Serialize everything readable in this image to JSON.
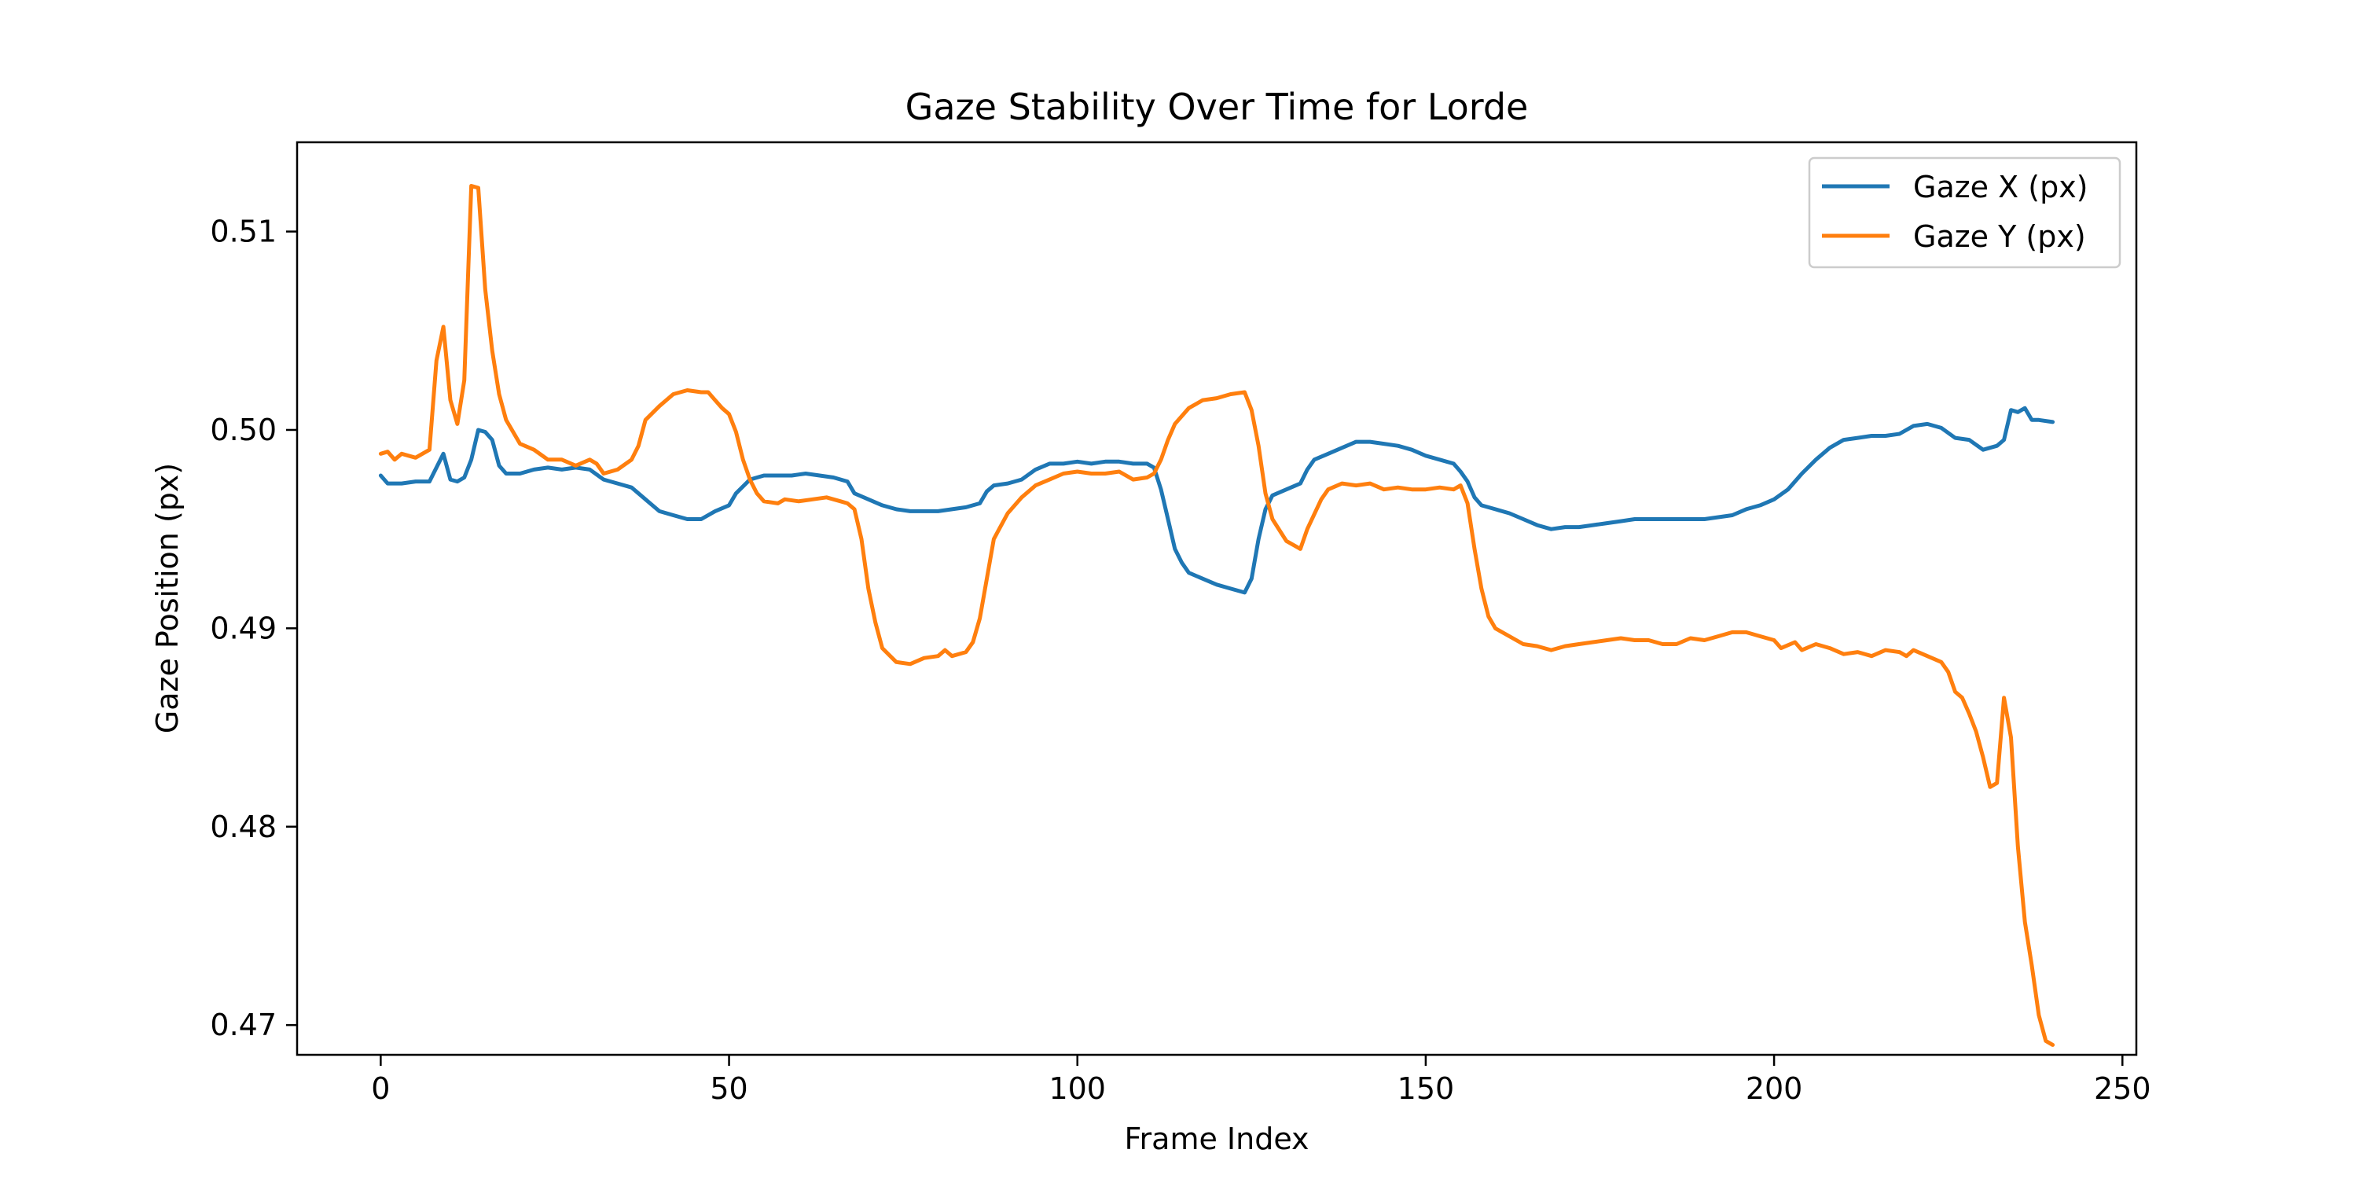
{
  "chart_data": {
    "type": "line",
    "title": "Gaze Stability Over Time for Lorde",
    "xlabel": "Frame Index",
    "ylabel": "Gaze Position (px)",
    "xlim": [
      -12,
      252
    ],
    "ylim": [
      0.4685,
      0.5145
    ],
    "xticks": [
      0,
      50,
      100,
      150,
      200,
      250
    ],
    "yticks": [
      0.47,
      0.48,
      0.49,
      0.5,
      0.51
    ],
    "xtick_labels": [
      "0",
      "50",
      "100",
      "150",
      "200",
      "250"
    ],
    "ytick_labels": [
      "0.47",
      "0.48",
      "0.49",
      "0.50",
      "0.51"
    ],
    "grid": false,
    "legend_position": "top-right",
    "series": [
      {
        "name": "Gaze X (px)",
        "color": "#1f77b4",
        "points": [
          [
            0,
            0.4977
          ],
          [
            1,
            0.4973
          ],
          [
            3,
            0.4973
          ],
          [
            5,
            0.4974
          ],
          [
            7,
            0.4974
          ],
          [
            9,
            0.4988
          ],
          [
            10,
            0.4975
          ],
          [
            11,
            0.4974
          ],
          [
            12,
            0.4976
          ],
          [
            13,
            0.4985
          ],
          [
            14,
            0.5
          ],
          [
            15,
            0.4999
          ],
          [
            16,
            0.4995
          ],
          [
            17,
            0.4982
          ],
          [
            18,
            0.4978
          ],
          [
            20,
            0.4978
          ],
          [
            22,
            0.498
          ],
          [
            24,
            0.4981
          ],
          [
            26,
            0.498
          ],
          [
            28,
            0.4981
          ],
          [
            30,
            0.498
          ],
          [
            32,
            0.4975
          ],
          [
            34,
            0.4973
          ],
          [
            36,
            0.4971
          ],
          [
            38,
            0.4965
          ],
          [
            40,
            0.4959
          ],
          [
            42,
            0.4957
          ],
          [
            44,
            0.4955
          ],
          [
            46,
            0.4955
          ],
          [
            48,
            0.4959
          ],
          [
            50,
            0.4962
          ],
          [
            51,
            0.4968
          ],
          [
            53,
            0.4975
          ],
          [
            55,
            0.4977
          ],
          [
            57,
            0.4977
          ],
          [
            59,
            0.4977
          ],
          [
            61,
            0.4978
          ],
          [
            63,
            0.4977
          ],
          [
            65,
            0.4976
          ],
          [
            67,
            0.4974
          ],
          [
            68,
            0.4968
          ],
          [
            70,
            0.4965
          ],
          [
            72,
            0.4962
          ],
          [
            74,
            0.496
          ],
          [
            76,
            0.4959
          ],
          [
            78,
            0.4959
          ],
          [
            80,
            0.4959
          ],
          [
            82,
            0.496
          ],
          [
            84,
            0.4961
          ],
          [
            86,
            0.4963
          ],
          [
            87,
            0.4969
          ],
          [
            88,
            0.4972
          ],
          [
            90,
            0.4973
          ],
          [
            92,
            0.4975
          ],
          [
            94,
            0.498
          ],
          [
            96,
            0.4983
          ],
          [
            98,
            0.4983
          ],
          [
            100,
            0.4984
          ],
          [
            102,
            0.4983
          ],
          [
            104,
            0.4984
          ],
          [
            106,
            0.4984
          ],
          [
            108,
            0.4983
          ],
          [
            110,
            0.4983
          ],
          [
            111,
            0.4981
          ],
          [
            112,
            0.497
          ],
          [
            113,
            0.4955
          ],
          [
            114,
            0.494
          ],
          [
            115,
            0.4933
          ],
          [
            116,
            0.4928
          ],
          [
            118,
            0.4925
          ],
          [
            120,
            0.4922
          ],
          [
            122,
            0.492
          ],
          [
            124,
            0.4918
          ],
          [
            125,
            0.4925
          ],
          [
            126,
            0.4945
          ],
          [
            127,
            0.496
          ],
          [
            128,
            0.4967
          ],
          [
            130,
            0.497
          ],
          [
            132,
            0.4973
          ],
          [
            133,
            0.498
          ],
          [
            134,
            0.4985
          ],
          [
            136,
            0.4988
          ],
          [
            138,
            0.4991
          ],
          [
            140,
            0.4994
          ],
          [
            142,
            0.4994
          ],
          [
            144,
            0.4993
          ],
          [
            146,
            0.4992
          ],
          [
            148,
            0.499
          ],
          [
            150,
            0.4987
          ],
          [
            152,
            0.4985
          ],
          [
            154,
            0.4983
          ],
          [
            155,
            0.4979
          ],
          [
            156,
            0.4974
          ],
          [
            157,
            0.4966
          ],
          [
            158,
            0.4962
          ],
          [
            160,
            0.496
          ],
          [
            162,
            0.4958
          ],
          [
            164,
            0.4955
          ],
          [
            166,
            0.4952
          ],
          [
            168,
            0.495
          ],
          [
            170,
            0.4951
          ],
          [
            172,
            0.4951
          ],
          [
            174,
            0.4952
          ],
          [
            176,
            0.4953
          ],
          [
            178,
            0.4954
          ],
          [
            180,
            0.4955
          ],
          [
            182,
            0.4955
          ],
          [
            184,
            0.4955
          ],
          [
            186,
            0.4955
          ],
          [
            188,
            0.4955
          ],
          [
            190,
            0.4955
          ],
          [
            192,
            0.4956
          ],
          [
            194,
            0.4957
          ],
          [
            196,
            0.496
          ],
          [
            198,
            0.4962
          ],
          [
            200,
            0.4965
          ],
          [
            202,
            0.497
          ],
          [
            204,
            0.4978
          ],
          [
            206,
            0.4985
          ],
          [
            208,
            0.4991
          ],
          [
            210,
            0.4995
          ],
          [
            212,
            0.4996
          ],
          [
            214,
            0.4997
          ],
          [
            216,
            0.4997
          ],
          [
            218,
            0.4998
          ],
          [
            220,
            0.5002
          ],
          [
            222,
            0.5003
          ],
          [
            224,
            0.5001
          ],
          [
            226,
            0.4996
          ],
          [
            228,
            0.4995
          ],
          [
            230,
            0.499
          ],
          [
            232,
            0.4992
          ],
          [
            233,
            0.4995
          ],
          [
            234,
            0.501
          ],
          [
            235,
            0.5009
          ],
          [
            236,
            0.5011
          ],
          [
            237,
            0.5005
          ],
          [
            238,
            0.5005
          ],
          [
            240,
            0.5004
          ]
        ]
      },
      {
        "name": "Gaze Y (px)",
        "color": "#ff7f0e",
        "points": [
          [
            0,
            0.4988
          ],
          [
            1,
            0.4989
          ],
          [
            2,
            0.4985
          ],
          [
            3,
            0.4988
          ],
          [
            5,
            0.4986
          ],
          [
            7,
            0.499
          ],
          [
            8,
            0.5035
          ],
          [
            9,
            0.5052
          ],
          [
            10,
            0.5015
          ],
          [
            11,
            0.5003
          ],
          [
            12,
            0.5025
          ],
          [
            13,
            0.5123
          ],
          [
            14,
            0.5122
          ],
          [
            15,
            0.5071
          ],
          [
            16,
            0.504
          ],
          [
            17,
            0.5018
          ],
          [
            18,
            0.5005
          ],
          [
            20,
            0.4993
          ],
          [
            22,
            0.499
          ],
          [
            24,
            0.4985
          ],
          [
            26,
            0.4985
          ],
          [
            28,
            0.4982
          ],
          [
            30,
            0.4985
          ],
          [
            31,
            0.4983
          ],
          [
            32,
            0.4978
          ],
          [
            34,
            0.498
          ],
          [
            36,
            0.4985
          ],
          [
            37,
            0.4992
          ],
          [
            38,
            0.5005
          ],
          [
            40,
            0.5012
          ],
          [
            42,
            0.5018
          ],
          [
            44,
            0.502
          ],
          [
            46,
            0.5019
          ],
          [
            47,
            0.5019
          ],
          [
            48,
            0.5015
          ],
          [
            49,
            0.5011
          ],
          [
            50,
            0.5008
          ],
          [
            51,
            0.4999
          ],
          [
            52,
            0.4985
          ],
          [
            53,
            0.4975
          ],
          [
            54,
            0.4968
          ],
          [
            55,
            0.4964
          ],
          [
            57,
            0.4963
          ],
          [
            58,
            0.4965
          ],
          [
            60,
            0.4964
          ],
          [
            62,
            0.4965
          ],
          [
            64,
            0.4966
          ],
          [
            66,
            0.4964
          ],
          [
            67,
            0.4963
          ],
          [
            68,
            0.496
          ],
          [
            69,
            0.4945
          ],
          [
            70,
            0.492
          ],
          [
            71,
            0.4903
          ],
          [
            72,
            0.489
          ],
          [
            74,
            0.4883
          ],
          [
            76,
            0.4882
          ],
          [
            78,
            0.4885
          ],
          [
            80,
            0.4886
          ],
          [
            81,
            0.4889
          ],
          [
            82,
            0.4886
          ],
          [
            84,
            0.4888
          ],
          [
            85,
            0.4893
          ],
          [
            86,
            0.4905
          ],
          [
            87,
            0.4925
          ],
          [
            88,
            0.4945
          ],
          [
            90,
            0.4958
          ],
          [
            92,
            0.4966
          ],
          [
            94,
            0.4972
          ],
          [
            96,
            0.4975
          ],
          [
            98,
            0.4978
          ],
          [
            100,
            0.4979
          ],
          [
            102,
            0.4978
          ],
          [
            104,
            0.4978
          ],
          [
            106,
            0.4979
          ],
          [
            108,
            0.4975
          ],
          [
            110,
            0.4976
          ],
          [
            111,
            0.4978
          ],
          [
            112,
            0.4985
          ],
          [
            113,
            0.4995
          ],
          [
            114,
            0.5003
          ],
          [
            116,
            0.5011
          ],
          [
            118,
            0.5015
          ],
          [
            120,
            0.5016
          ],
          [
            122,
            0.5018
          ],
          [
            124,
            0.5019
          ],
          [
            125,
            0.501
          ],
          [
            126,
            0.4992
          ],
          [
            127,
            0.4968
          ],
          [
            128,
            0.4955
          ],
          [
            130,
            0.4944
          ],
          [
            132,
            0.494
          ],
          [
            133,
            0.495
          ],
          [
            135,
            0.4965
          ],
          [
            136,
            0.497
          ],
          [
            138,
            0.4973
          ],
          [
            140,
            0.4972
          ],
          [
            142,
            0.4973
          ],
          [
            144,
            0.497
          ],
          [
            146,
            0.4971
          ],
          [
            148,
            0.497
          ],
          [
            150,
            0.497
          ],
          [
            152,
            0.4971
          ],
          [
            154,
            0.497
          ],
          [
            155,
            0.4972
          ],
          [
            156,
            0.4963
          ],
          [
            157,
            0.494
          ],
          [
            158,
            0.492
          ],
          [
            159,
            0.4906
          ],
          [
            160,
            0.49
          ],
          [
            162,
            0.4896
          ],
          [
            164,
            0.4892
          ],
          [
            166,
            0.4891
          ],
          [
            168,
            0.4889
          ],
          [
            170,
            0.4891
          ],
          [
            172,
            0.4892
          ],
          [
            174,
            0.4893
          ],
          [
            176,
            0.4894
          ],
          [
            178,
            0.4895
          ],
          [
            180,
            0.4894
          ],
          [
            182,
            0.4894
          ],
          [
            184,
            0.4892
          ],
          [
            186,
            0.4892
          ],
          [
            188,
            0.4895
          ],
          [
            190,
            0.4894
          ],
          [
            192,
            0.4896
          ],
          [
            194,
            0.4898
          ],
          [
            196,
            0.4898
          ],
          [
            198,
            0.4896
          ],
          [
            200,
            0.4894
          ],
          [
            201,
            0.489
          ],
          [
            203,
            0.4893
          ],
          [
            204,
            0.4889
          ],
          [
            206,
            0.4892
          ],
          [
            208,
            0.489
          ],
          [
            210,
            0.4887
          ],
          [
            212,
            0.4888
          ],
          [
            214,
            0.4886
          ],
          [
            216,
            0.4889
          ],
          [
            218,
            0.4888
          ],
          [
            219,
            0.4886
          ],
          [
            220,
            0.4889
          ],
          [
            222,
            0.4886
          ],
          [
            224,
            0.4883
          ],
          [
            225,
            0.4878
          ],
          [
            226,
            0.4868
          ],
          [
            227,
            0.4865
          ],
          [
            228,
            0.4857
          ],
          [
            229,
            0.4848
          ],
          [
            230,
            0.4835
          ],
          [
            231,
            0.482
          ],
          [
            232,
            0.4822
          ],
          [
            233,
            0.4865
          ],
          [
            234,
            0.4845
          ],
          [
            235,
            0.479
          ],
          [
            236,
            0.4752
          ],
          [
            237,
            0.473
          ],
          [
            238,
            0.4705
          ],
          [
            239,
            0.4692
          ],
          [
            240,
            0.469
          ]
        ]
      }
    ]
  }
}
